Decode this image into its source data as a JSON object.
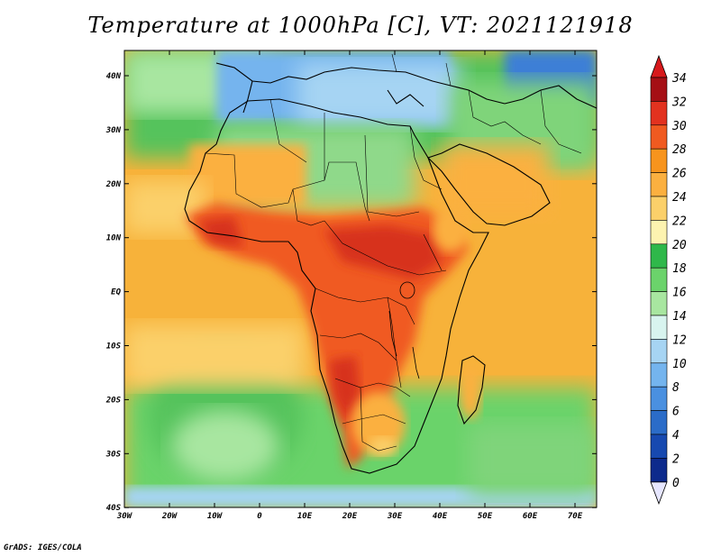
{
  "title": "Temperature at 1000hPa [C], VT: 2021121918",
  "credit": "GrADS: IGES/COLA",
  "map": {
    "lon_ticks": [
      "30W",
      "20W",
      "10W",
      "0",
      "10E",
      "20E",
      "30E",
      "40E",
      "50E",
      "60E",
      "70E"
    ],
    "lat_ticks": [
      "40N",
      "30N",
      "20N",
      "10N",
      "EQ",
      "10S",
      "20S",
      "30S",
      "40S"
    ]
  },
  "colorbar": {
    "levels": [
      "34",
      "32",
      "30",
      "28",
      "26",
      "24",
      "22",
      "20",
      "18",
      "16",
      "14",
      "12",
      "10",
      "8",
      "6",
      "4",
      "2",
      "0"
    ],
    "colors": [
      "#a50f15",
      "#e2321f",
      "#f05a20",
      "#f7941d",
      "#fbb040",
      "#fbd06a",
      "#fdf3b0",
      "#2fb84a",
      "#6bd36b",
      "#a8e6a0",
      "#d8f4ef",
      "#a6d4f3",
      "#74b4ee",
      "#4a90e0",
      "#2b6cc8",
      "#1749b0",
      "#0d2a8c",
      "#0b1464"
    ],
    "top_color": "#d7191c",
    "bottom_color": "#e6e6ff"
  }
}
